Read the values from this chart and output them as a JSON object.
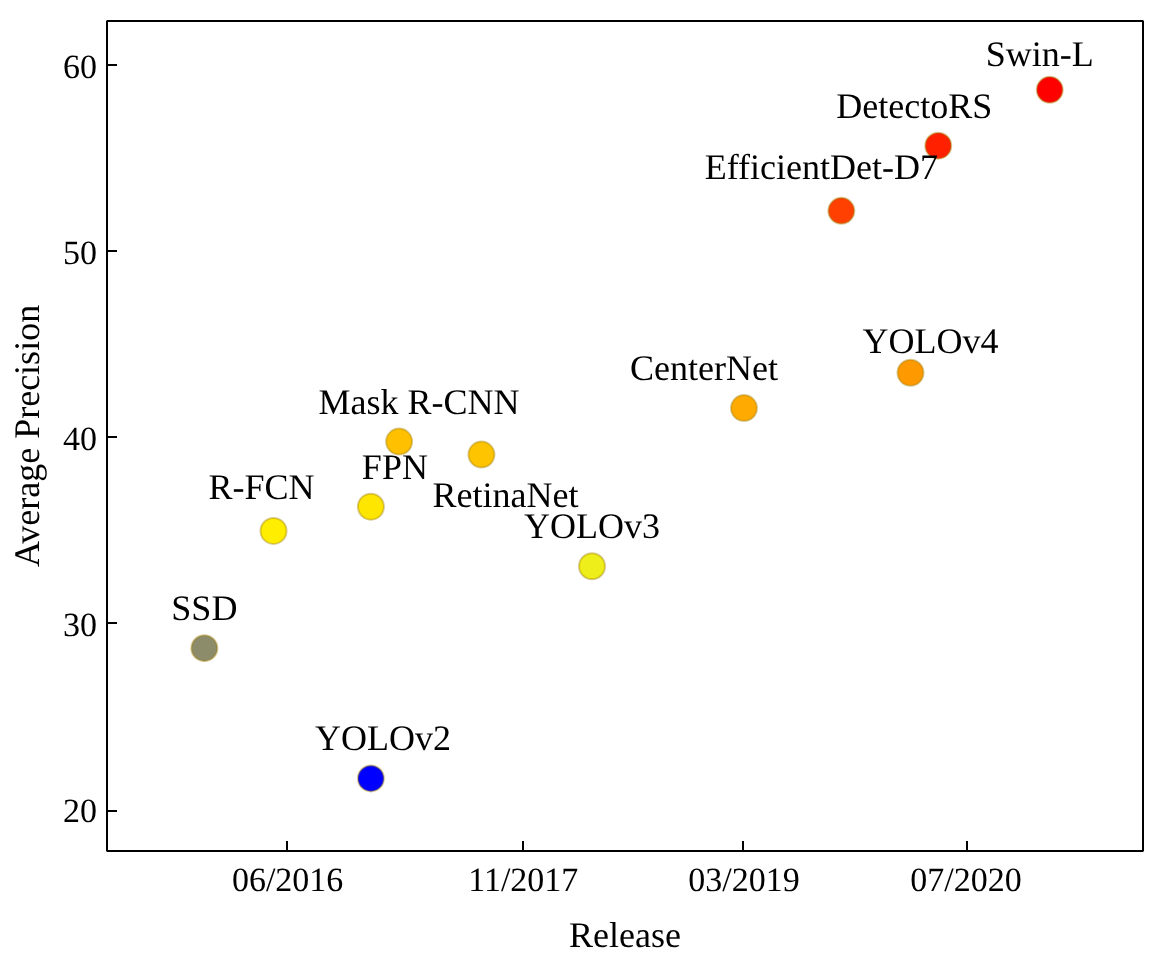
{
  "chart_data": {
    "type": "scatter",
    "xlabel": "Release",
    "ylabel": "Average Precision",
    "x": [
      "2015-12",
      "2016-05",
      "2016-12",
      "2016-12",
      "2017-02",
      "2017-08",
      "2018-04",
      "2019-03",
      "2019-10",
      "2020-03",
      "2020-05",
      "2021-01"
    ],
    "values": [
      28.7,
      35.0,
      21.7,
      36.3,
      39.8,
      39.1,
      33.1,
      41.6,
      52.2,
      43.5,
      55.7,
      58.7
    ],
    "colors": [
      "#8c8c6a",
      "#ffee00",
      "#0000ff",
      "#ffe600",
      "#ffc000",
      "#ffc400",
      "#eeee1a",
      "#ffaa00",
      "#ff4000",
      "#ff9900",
      "#ff2000",
      "#ff0000"
    ],
    "marker": "circle",
    "grid": false,
    "xlim": [
      "2015-05-01",
      "2021-07-25"
    ],
    "xticks": [
      {
        "value": "2016-06-01",
        "label": "06/2016"
      },
      {
        "value": "2017-11-01",
        "label": "11/2017"
      },
      {
        "value": "2019-03-01",
        "label": "03/2019"
      },
      {
        "value": "2020-07-01",
        "label": "07/2020"
      }
    ],
    "ylim": [
      17.8,
      62.4
    ],
    "yticks": [
      20,
      30,
      40,
      50,
      60
    ],
    "annotations": [
      {
        "text": "SSD",
        "x": "2015-12",
        "y": 28.7
      },
      {
        "text": "R-FCN",
        "x": "2016-05",
        "y": 35.0
      },
      {
        "text": "YOLOv2",
        "x": "2016-12",
        "y": 21.7
      },
      {
        "text": "FPN",
        "x": "2016-12",
        "y": 36.3
      },
      {
        "text": "Mask R-CNN",
        "x": "2017-02",
        "y": 39.8
      },
      {
        "text": "RetinaNet",
        "x": "2017-08",
        "y": 39.1
      },
      {
        "text": "YOLOv3",
        "x": "2018-04",
        "y": 33.1
      },
      {
        "text": "CenterNet",
        "x": "2019-03",
        "y": 41.6
      },
      {
        "text": "EfficientDet-D7",
        "x": "2019-10",
        "y": 52.2
      },
      {
        "text": "YOLOv4",
        "x": "2020-03",
        "y": 43.5
      },
      {
        "text": "DetectoRS",
        "x": "2020-05",
        "y": 55.7
      },
      {
        "text": "Swin-L",
        "x": "2021-01",
        "y": 58.7
      }
    ]
  }
}
